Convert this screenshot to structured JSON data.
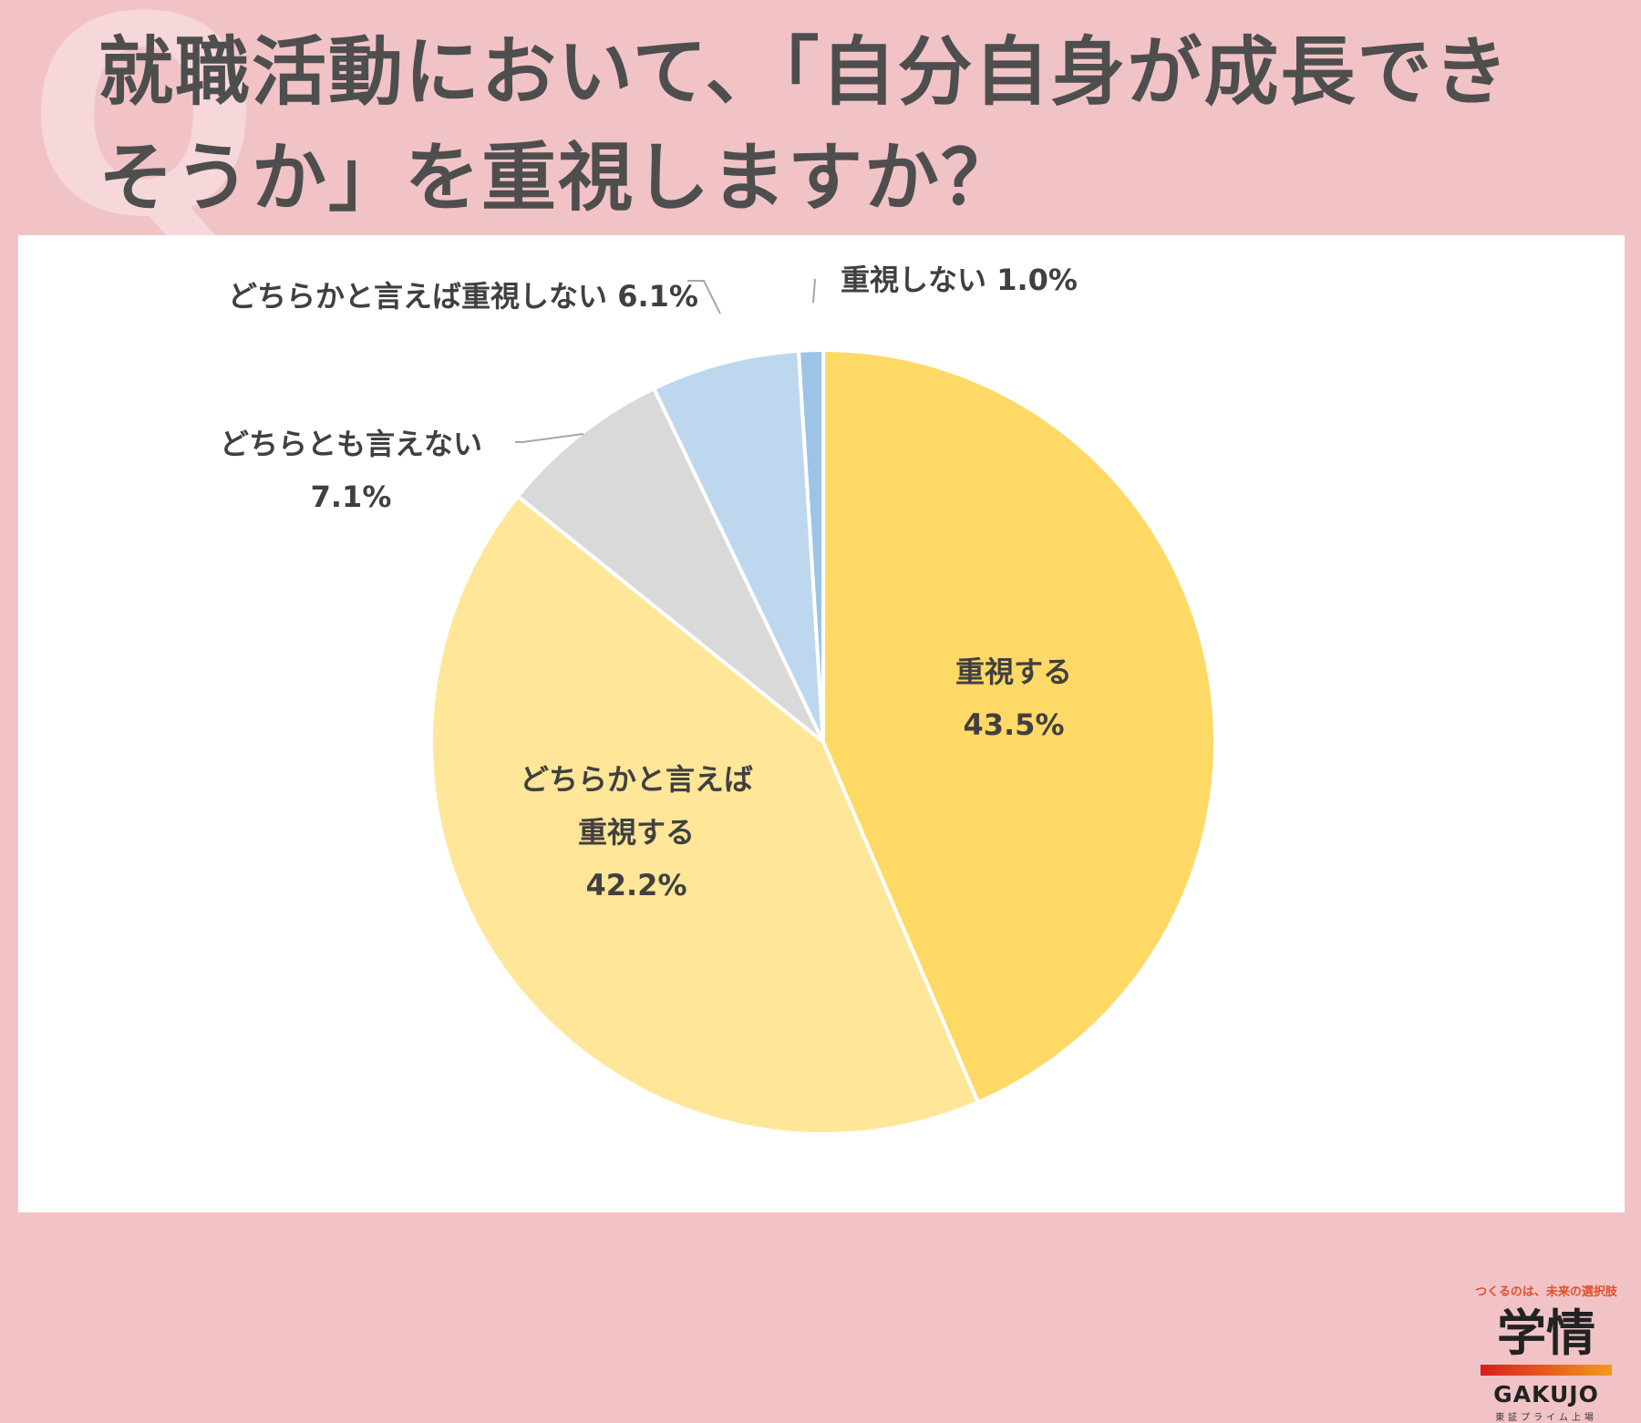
{
  "title": {
    "line1": "就職活動において、「自分自身が成長でき",
    "line2": "そうか」を重視しますか？"
  },
  "decoration": {
    "letter": "Q"
  },
  "colors": {
    "background": "#f1c3c6",
    "panel": "#ffffff",
    "title_text": "#4e4e4e",
    "label_text": "#404040"
  },
  "chart_data": {
    "type": "pie",
    "start_angle_deg": 0,
    "direction": "clockwise",
    "slices": [
      {
        "label": "重視する",
        "value": 43.5,
        "value_label": "43.5%",
        "color": "#ffd966"
      },
      {
        "label": "どちらかと言えば重視する",
        "label_lines": [
          "どちらかと言えば",
          "重視する"
        ],
        "value": 42.2,
        "value_label": "42.2%",
        "color": "#ffe699"
      },
      {
        "label": "どちらとも言えない",
        "value": 7.1,
        "value_label": "7.1%",
        "color": "#d9d9d9"
      },
      {
        "label": "どちらかと言えば重視しない",
        "value": 6.1,
        "value_label": "6.1%",
        "color": "#bdd7ee"
      },
      {
        "label": "重視しない",
        "value": 1.0,
        "value_label": "1.0%",
        "color": "#9dc3e6"
      }
    ]
  },
  "logo": {
    "tagline": "つくるのは、未来の選択肢",
    "kanji": "学情",
    "en": "GAKUJO",
    "sub": "東証プライム上場"
  }
}
